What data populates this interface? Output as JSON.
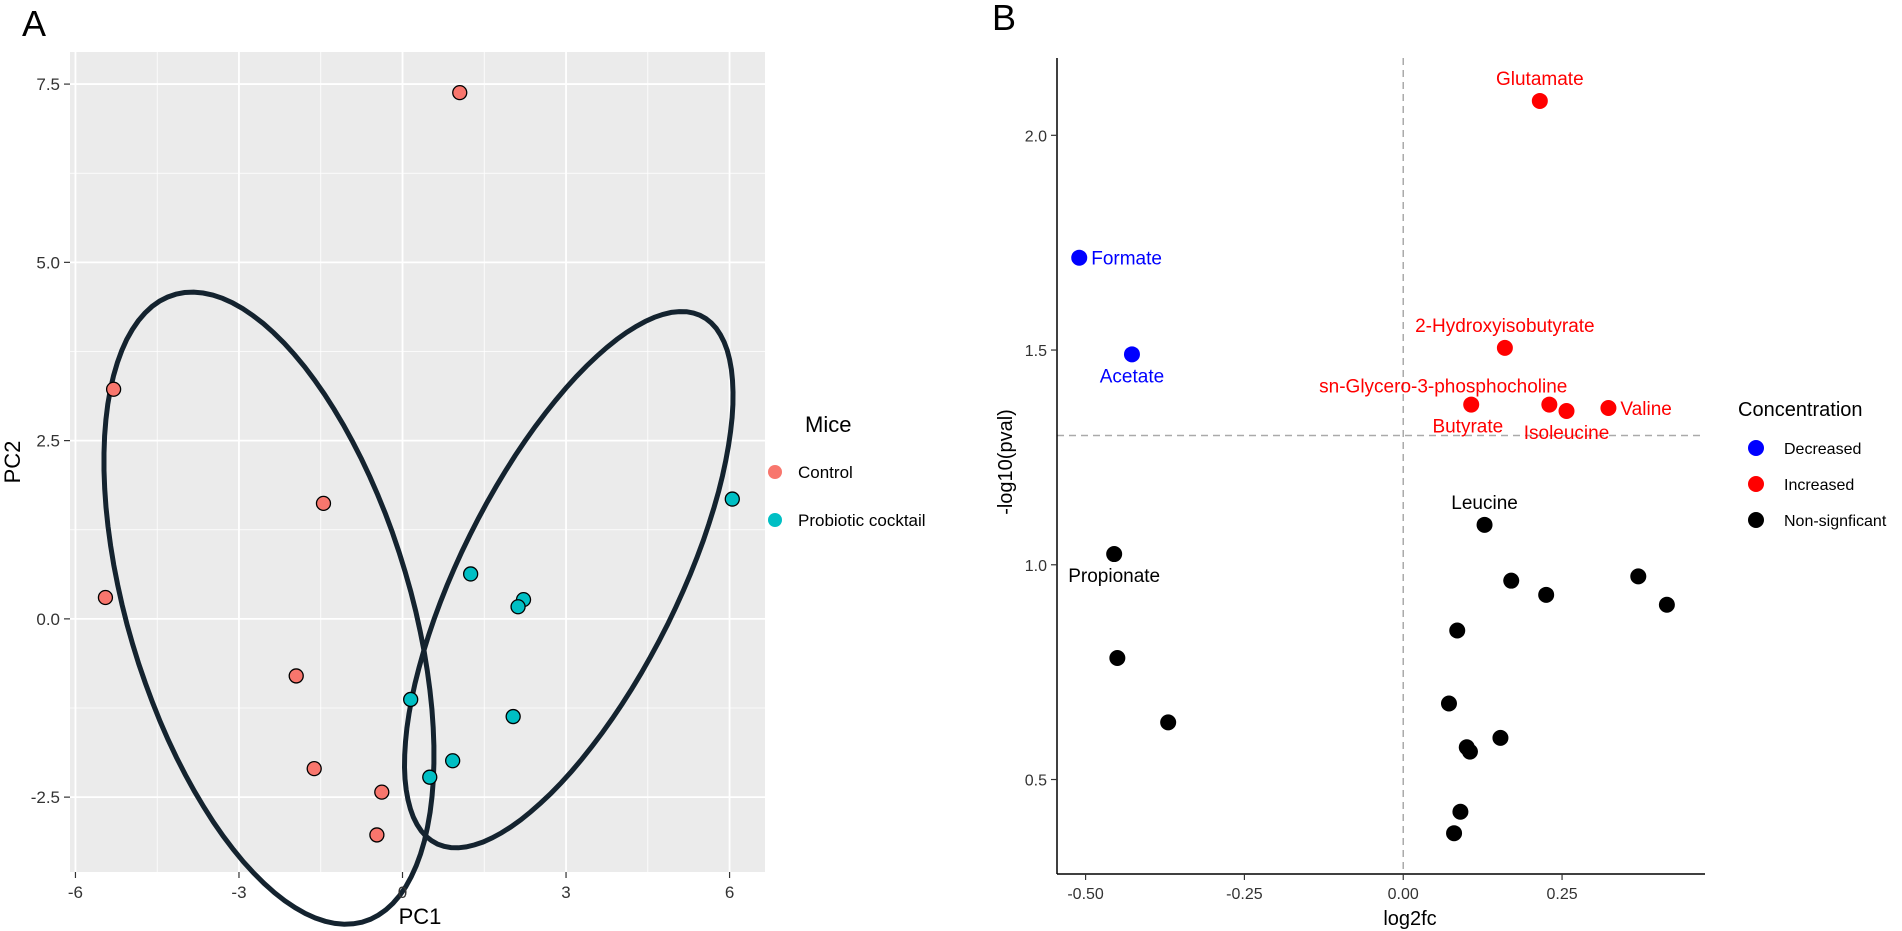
{
  "chart_data": [
    {
      "panel_label": "A",
      "type": "scatter",
      "xlabel": "PC1",
      "ylabel": "PC2",
      "xlim": [
        -6.1,
        6.65
      ],
      "ylim": [
        -3.55,
        7.95
      ],
      "xticks": [
        -6,
        -3,
        0,
        3,
        6
      ],
      "xtick_labels": [
        "-6",
        "-3",
        "0",
        "3",
        "6"
      ],
      "yticks": [
        -2.5,
        0.0,
        2.5,
        5.0,
        7.5
      ],
      "ytick_labels": [
        "-2.5",
        "0.0",
        "2.5",
        "5.0",
        "7.5"
      ],
      "grid": true,
      "legend": {
        "title": "Mice",
        "position": "right",
        "entries": [
          {
            "label": "Control",
            "color": "#F8766D"
          },
          {
            "label": "Probiotic cocktail",
            "color": "#00BFC4"
          }
        ]
      },
      "series": [
        {
          "name": "Control",
          "color": "#F8766D",
          "points": [
            {
              "x": 1.05,
              "y": 7.38
            },
            {
              "x": -5.3,
              "y": 3.22
            },
            {
              "x": -1.45,
              "y": 1.62
            },
            {
              "x": -5.45,
              "y": 0.3
            },
            {
              "x": -1.95,
              "y": -0.8
            },
            {
              "x": -1.62,
              "y": -2.1
            },
            {
              "x": -0.38,
              "y": -2.43
            },
            {
              "x": -0.47,
              "y": -3.03
            }
          ]
        },
        {
          "name": "Probiotic cocktail",
          "color": "#00BFC4",
          "points": [
            {
              "x": 6.05,
              "y": 1.68
            },
            {
              "x": 1.25,
              "y": 0.63
            },
            {
              "x": 2.22,
              "y": 0.27
            },
            {
              "x": 2.12,
              "y": 0.17
            },
            {
              "x": 0.15,
              "y": -1.13
            },
            {
              "x": 2.03,
              "y": -1.37
            },
            {
              "x": 0.92,
              "y": -1.99
            },
            {
              "x": 0.5,
              "y": -2.22
            }
          ]
        }
      ],
      "ellipses": [
        {
          "group": "Control",
          "center": [
            -2.45,
            0.15
          ],
          "half_axes": [
            2.5,
            4.75
          ],
          "angle_deg": 25,
          "color": "#14232f"
        },
        {
          "group": "Probiotic cocktail",
          "center": [
            3.05,
            0.55
          ],
          "half_axes": [
            1.85,
            4.45
          ],
          "angle_deg": -36,
          "color": "#14232f"
        }
      ]
    },
    {
      "panel_label": "B",
      "type": "scatter",
      "xlabel": "log2fc",
      "ylabel": "-log10(pval)",
      "xlim": [
        -0.545,
        0.475
      ],
      "ylim": [
        0.28,
        2.18
      ],
      "xticks": [
        -0.5,
        -0.25,
        0.0,
        0.25
      ],
      "xtick_labels": [
        "-0.50",
        "-0.25",
        "0.00",
        "0.25"
      ],
      "yticks": [
        0.5,
        1.0,
        1.5,
        2.0
      ],
      "ytick_labels": [
        "0.5",
        "1.0",
        "1.5",
        "2.0"
      ],
      "grid": false,
      "threshold_lines": {
        "vertical_x": 0.0,
        "horizontal_y": 1.301
      },
      "legend": {
        "title": "Concentration",
        "position": "right",
        "entries": [
          {
            "label": "Decreased",
            "color": "#0000FF"
          },
          {
            "label": "Increased",
            "color": "#FF0000"
          },
          {
            "label": "Non-signficant",
            "color": "#000000"
          }
        ]
      },
      "points": [
        {
          "x": -0.51,
          "y": 1.715,
          "cat": "Decreased"
        },
        {
          "x": -0.427,
          "y": 1.49,
          "cat": "Decreased"
        },
        {
          "x": 0.215,
          "y": 2.08,
          "cat": "Increased"
        },
        {
          "x": 0.16,
          "y": 1.505,
          "cat": "Increased"
        },
        {
          "x": 0.107,
          "y": 1.373,
          "cat": "Increased"
        },
        {
          "x": 0.23,
          "y": 1.373,
          "cat": "Increased"
        },
        {
          "x": 0.257,
          "y": 1.358,
          "cat": "Increased"
        },
        {
          "x": 0.323,
          "y": 1.365,
          "cat": "Increased"
        },
        {
          "x": -0.455,
          "y": 1.025,
          "cat": "Non-signficant"
        },
        {
          "x": -0.45,
          "y": 0.783,
          "cat": "Non-signficant"
        },
        {
          "x": -0.37,
          "y": 0.633,
          "cat": "Non-signficant"
        },
        {
          "x": 0.128,
          "y": 1.093,
          "cat": "Non-signficant"
        },
        {
          "x": 0.17,
          "y": 0.963,
          "cat": "Non-signficant"
        },
        {
          "x": 0.225,
          "y": 0.93,
          "cat": "Non-signficant"
        },
        {
          "x": 0.37,
          "y": 0.973,
          "cat": "Non-signficant"
        },
        {
          "x": 0.415,
          "y": 0.907,
          "cat": "Non-signficant"
        },
        {
          "x": 0.085,
          "y": 0.847,
          "cat": "Non-signficant"
        },
        {
          "x": 0.072,
          "y": 0.677,
          "cat": "Non-signficant"
        },
        {
          "x": 0.1,
          "y": 0.575,
          "cat": "Non-signficant"
        },
        {
          "x": 0.105,
          "y": 0.565,
          "cat": "Non-signficant"
        },
        {
          "x": 0.153,
          "y": 0.597,
          "cat": "Non-signficant"
        },
        {
          "x": 0.09,
          "y": 0.425,
          "cat": "Non-signficant"
        },
        {
          "x": 0.08,
          "y": 0.375,
          "cat": "Non-signficant"
        }
      ],
      "annotations": [
        {
          "text": "Glutamate",
          "x": 0.215,
          "y": 2.08,
          "color": "#FF0000",
          "placement": "above"
        },
        {
          "text": "Formate",
          "x": -0.51,
          "y": 1.715,
          "color": "#0000FF",
          "placement": "right"
        },
        {
          "text": "2-Hydroxyisobutyrate",
          "x": 0.16,
          "y": 1.505,
          "color": "#FF0000",
          "placement": "above"
        },
        {
          "text": "Acetate",
          "x": -0.427,
          "y": 1.49,
          "color": "#0000FF",
          "placement": "below"
        },
        {
          "text": "sn-Glycero-3-phosphocholine",
          "x": 0.23,
          "y": 1.373,
          "color": "#FF0000",
          "placement": "above-left"
        },
        {
          "text": "Valine",
          "x": 0.323,
          "y": 1.365,
          "color": "#FF0000",
          "placement": "right"
        },
        {
          "text": "Butyrate",
          "x": 0.107,
          "y": 1.373,
          "color": "#FF0000",
          "placement": "below-left"
        },
        {
          "text": "Isoleucine",
          "x": 0.257,
          "y": 1.358,
          "color": "#FF0000",
          "placement": "below"
        },
        {
          "text": "Leucine",
          "x": 0.128,
          "y": 1.093,
          "color": "#000000",
          "placement": "above"
        },
        {
          "text": "Propionate",
          "x": -0.455,
          "y": 1.025,
          "color": "#000000",
          "placement": "below"
        }
      ]
    }
  ]
}
